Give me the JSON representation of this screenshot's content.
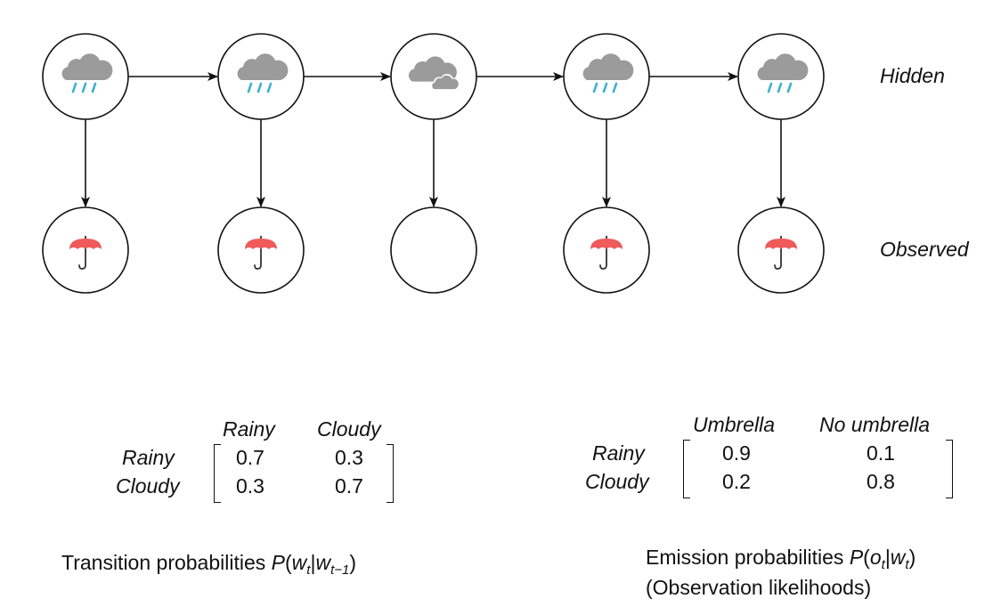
{
  "layers": {
    "hidden_label": "Hidden",
    "observed_label": "Observed"
  },
  "hidden_states": [
    "rainy-icon",
    "rainy-icon",
    "cloudy-icon",
    "rainy-icon",
    "rainy-icon"
  ],
  "observations": [
    "umbrella-icon",
    "umbrella-icon",
    "none",
    "umbrella-icon",
    "umbrella-icon"
  ],
  "colors": {
    "rain_cloud": "#9b9b9b",
    "rain_drops": "#3cb1cf",
    "umbrella": "#ef5a5a",
    "umbrella_handle": "#333333",
    "stroke": "#111111"
  },
  "transition": {
    "col_headers": [
      "Rainy",
      "Cloudy"
    ],
    "row_headers": [
      "Rainy",
      "Cloudy"
    ],
    "rows": [
      [
        "0.7",
        "0.3"
      ],
      [
        "0.3",
        "0.7"
      ]
    ],
    "caption_text": "Transition probabilities"
  },
  "emission": {
    "col_headers": [
      "Umbrella",
      "No umbrella"
    ],
    "row_headers": [
      "Rainy",
      "Cloudy"
    ],
    "rows": [
      [
        "0.9",
        "0.1"
      ],
      [
        "0.2",
        "0.8"
      ]
    ],
    "caption_text": "Emission probabilities",
    "caption_line2": "(Observation likelihoods)"
  },
  "formula": {
    "P": "P",
    "w": "w",
    "o": "o",
    "bar": "|",
    "sub_t": "t",
    "sub_t1": "t−1",
    "open": "(",
    "close": ")"
  }
}
